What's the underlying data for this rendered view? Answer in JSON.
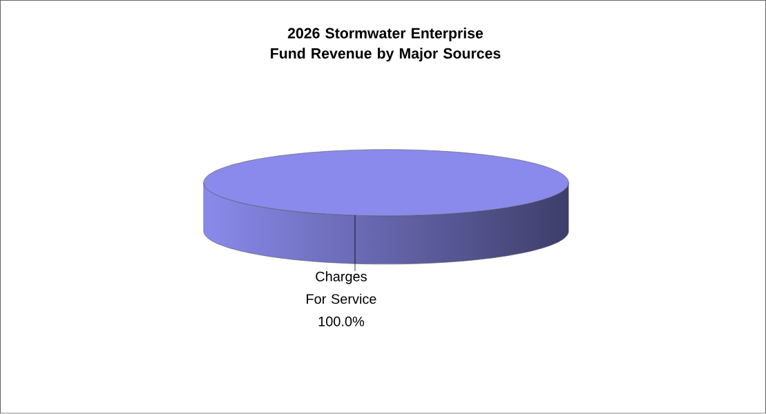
{
  "chart_data": {
    "type": "pie",
    "title": "2026 Stormwater Enterprise Fund Revenue by Major Sources",
    "categories": [
      "Charges For Service"
    ],
    "values": [
      100
    ],
    "value_labels": [
      "100.0%"
    ],
    "colors": [
      "#8a8aec"
    ]
  }
}
